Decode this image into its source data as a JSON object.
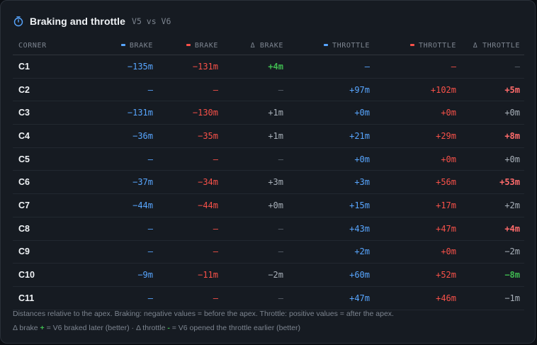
{
  "header": {
    "icon": "stopwatch-icon",
    "title": "Braking and throttle",
    "subtitle": "V5 vs V6"
  },
  "colors": {
    "v5": "#58a6ff",
    "v6": "#f85149",
    "better": "#3fb950",
    "worse": "#ff6b6b"
  },
  "table": {
    "columns": [
      "CORNER",
      "BRAKE",
      "BRAKE",
      "Δ BRAKE",
      "THROTTLE",
      "THROTTLE",
      "Δ THROTTLE"
    ],
    "rows": [
      {
        "corner": "C1",
        "b5": "−135m",
        "b6": "−131m",
        "db": "+4m",
        "t5": "–",
        "t6": "–",
        "dt": "–"
      },
      {
        "corner": "C2",
        "b5": "–",
        "b6": "–",
        "db": "–",
        "t5": "+97m",
        "t6": "+102m",
        "dt": "+5m"
      },
      {
        "corner": "C3",
        "b5": "−131m",
        "b6": "−130m",
        "db": "+1m",
        "t5": "+0m",
        "t6": "+0m",
        "dt": "+0m"
      },
      {
        "corner": "C4",
        "b5": "−36m",
        "b6": "−35m",
        "db": "+1m",
        "t5": "+21m",
        "t6": "+29m",
        "dt": "+8m"
      },
      {
        "corner": "C5",
        "b5": "–",
        "b6": "–",
        "db": "–",
        "t5": "+0m",
        "t6": "+0m",
        "dt": "+0m"
      },
      {
        "corner": "C6",
        "b5": "−37m",
        "b6": "−34m",
        "db": "+3m",
        "t5": "+3m",
        "t6": "+56m",
        "dt": "+53m"
      },
      {
        "corner": "C7",
        "b5": "−44m",
        "b6": "−44m",
        "db": "+0m",
        "t5": "+15m",
        "t6": "+17m",
        "dt": "+2m"
      },
      {
        "corner": "C8",
        "b5": "–",
        "b6": "–",
        "db": "–",
        "t5": "+43m",
        "t6": "+47m",
        "dt": "+4m"
      },
      {
        "corner": "C9",
        "b5": "–",
        "b6": "–",
        "db": "–",
        "t5": "+2m",
        "t6": "+0m",
        "dt": "−2m"
      },
      {
        "corner": "C10",
        "b5": "−9m",
        "b6": "−11m",
        "db": "−2m",
        "t5": "+60m",
        "t6": "+52m",
        "dt": "−8m"
      },
      {
        "corner": "C11",
        "b5": "–",
        "b6": "–",
        "db": "–",
        "t5": "+47m",
        "t6": "+46m",
        "dt": "−1m"
      }
    ]
  },
  "notes": {
    "line1": "Distances relative to the apex. Braking: negative values = before the apex. Throttle: positive values = after the apex.",
    "line2_a": "Δ brake ",
    "line2_b": "+",
    "line2_c": " = V6 braked later (better) · Δ throttle ",
    "line2_d": "-",
    "line2_e": " = V6 opened the throttle earlier (better)"
  }
}
